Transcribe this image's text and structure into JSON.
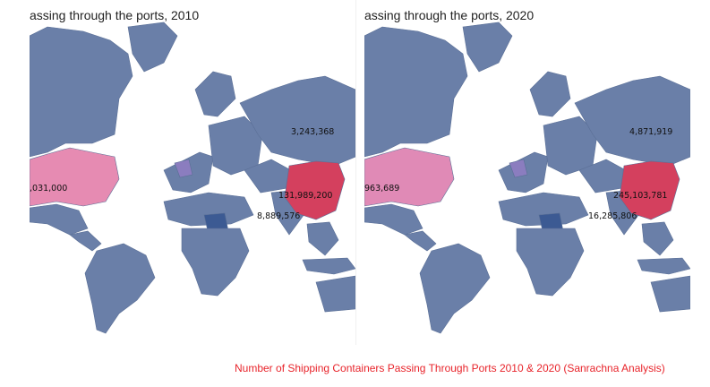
{
  "panels": [
    {
      "title": "assing through the ports, 2010",
      "labels": {
        "russia": "3,243,368",
        "usa": ",031,000",
        "china": "131,989,200",
        "india": "8,889,576"
      },
      "colors": {
        "base": "#6a7fa8",
        "usa": "#e68bb2",
        "china": "#d4405e",
        "europe_mid": "#8b7dbf",
        "sudan": "#3c5a93"
      }
    },
    {
      "title": "assing through the ports, 2020",
      "labels": {
        "russia": "4,871,919",
        "usa": "963,689",
        "china": "245,103,781",
        "india": "16,285,806"
      },
      "colors": {
        "base": "#6a7fa8",
        "usa": "#e08ab6",
        "china": "#d4405e",
        "europe_mid": "#8b7dbf",
        "sudan": "#3c5a93"
      }
    }
  ],
  "caption": "Number of Shipping Containers Passing Through Ports 2010 & 2020 (Sanrachna Analysis)"
}
